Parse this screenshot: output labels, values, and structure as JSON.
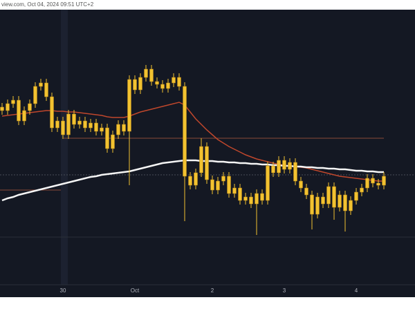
{
  "chart_data": {
    "type": "candlestick",
    "title": "view.com, Oct 04, 2024 09:51 UTC+2",
    "categories": [
      null,
      null,
      null,
      null,
      null,
      null,
      null,
      null,
      null,
      null,
      null,
      "30",
      null,
      null,
      null,
      null,
      null,
      null,
      null,
      null,
      null,
      null,
      null,
      null,
      "Oct",
      null,
      null,
      null,
      null,
      null,
      null,
      null,
      null,
      null,
      null,
      null,
      null,
      null,
      "2",
      null,
      null,
      null,
      null,
      null,
      null,
      null,
      null,
      null,
      null,
      null,
      null,
      "3",
      null,
      null,
      null,
      null,
      null,
      null,
      null,
      null,
      null,
      null,
      null,
      null,
      "4",
      null,
      null,
      null,
      null,
      null
    ],
    "open": [
      295,
      290,
      300,
      305,
      275,
      290,
      300,
      325,
      330,
      310,
      265,
      275,
      255,
      285,
      270,
      275,
      265,
      272,
      260,
      265,
      235,
      255,
      270,
      260,
      335,
      320,
      338,
      350,
      332,
      328,
      322,
      330,
      338,
      325,
      195,
      182,
      200,
      238,
      190,
      175,
      188,
      195,
      170,
      178,
      160,
      165,
      155,
      170,
      160,
      210,
      200,
      218,
      205,
      215,
      188,
      178,
      168,
      140,
      165,
      155,
      180,
      150,
      168,
      145,
      160,
      172,
      178,
      192,
      185,
      182
    ],
    "high": [
      301,
      306,
      311,
      311,
      296,
      306,
      331,
      336,
      336,
      316,
      281,
      281,
      291,
      291,
      281,
      281,
      278,
      278,
      271,
      271,
      261,
      276,
      276,
      341,
      341,
      344,
      356,
      356,
      338,
      334,
      336,
      344,
      344,
      331,
      201,
      206,
      250,
      244,
      196,
      194,
      201,
      201,
      184,
      184,
      171,
      171,
      176,
      176,
      216,
      216,
      224,
      224,
      221,
      221,
      194,
      184,
      174,
      171,
      171,
      186,
      186,
      174,
      174,
      166,
      178,
      184,
      198,
      198,
      191,
      201
    ],
    "low": [
      284,
      284,
      294,
      269,
      269,
      284,
      294,
      319,
      304,
      259,
      259,
      249,
      249,
      264,
      264,
      259,
      259,
      254,
      254,
      229,
      229,
      249,
      254,
      182,
      314,
      314,
      332,
      326,
      322,
      316,
      316,
      324,
      319,
      130,
      176,
      176,
      194,
      184,
      169,
      169,
      182,
      164,
      164,
      154,
      154,
      149,
      110,
      154,
      154,
      194,
      194,
      199,
      199,
      182,
      172,
      162,
      118,
      134,
      149,
      149,
      132,
      144,
      115,
      139,
      154,
      166,
      172,
      179,
      176,
      176
    ],
    "close": [
      290,
      300,
      305,
      275,
      290,
      300,
      325,
      330,
      310,
      265,
      275,
      255,
      285,
      270,
      275,
      265,
      272,
      260,
      265,
      235,
      255,
      270,
      260,
      335,
      320,
      338,
      350,
      332,
      328,
      322,
      330,
      338,
      325,
      195,
      182,
      200,
      238,
      190,
      175,
      188,
      195,
      170,
      178,
      160,
      165,
      155,
      170,
      160,
      210,
      200,
      218,
      205,
      215,
      188,
      178,
      168,
      140,
      165,
      155,
      180,
      150,
      168,
      145,
      160,
      172,
      178,
      192,
      185,
      182,
      195
    ],
    "color": "#f2c230",
    "lines": [
      {
        "color": "#c0472c",
        "values": [
          282,
          283,
          284,
          285,
          286,
          287,
          288,
          289,
          290,
          290,
          289,
          289,
          288,
          288,
          287,
          286,
          285,
          284,
          283,
          281,
          280,
          280,
          280,
          282,
          285,
          288,
          290,
          292,
          294,
          296,
          298,
          300,
          302,
          298,
          288,
          278,
          270,
          262,
          255,
          248,
          243,
          238,
          234,
          230,
          226,
          223,
          220,
          218,
          216,
          214,
          212,
          211,
          210,
          209,
          208,
          207,
          205,
          203,
          201,
          199,
          197,
          195,
          194,
          193,
          192,
          191,
          190,
          189,
          188,
          188
        ]
      },
      {
        "color": "#f5f5f5",
        "values": [
          160,
          163,
          165,
          168,
          170,
          172,
          174,
          176,
          178,
          180,
          182,
          184,
          186,
          188,
          190,
          192,
          194,
          195,
          197,
          198,
          199,
          200,
          201,
          202,
          204,
          206,
          208,
          210,
          212,
          214,
          215,
          216,
          217,
          218,
          218,
          218,
          217,
          217,
          217,
          216,
          216,
          215,
          215,
          214,
          214,
          213,
          213,
          212,
          212,
          211,
          211,
          210,
          210,
          209,
          209,
          208,
          208,
          207,
          207,
          206,
          206,
          205,
          205,
          204,
          203,
          203,
          202,
          202,
          201,
          201
        ]
      }
    ],
    "ylim": [
      38,
      436
    ]
  }
}
